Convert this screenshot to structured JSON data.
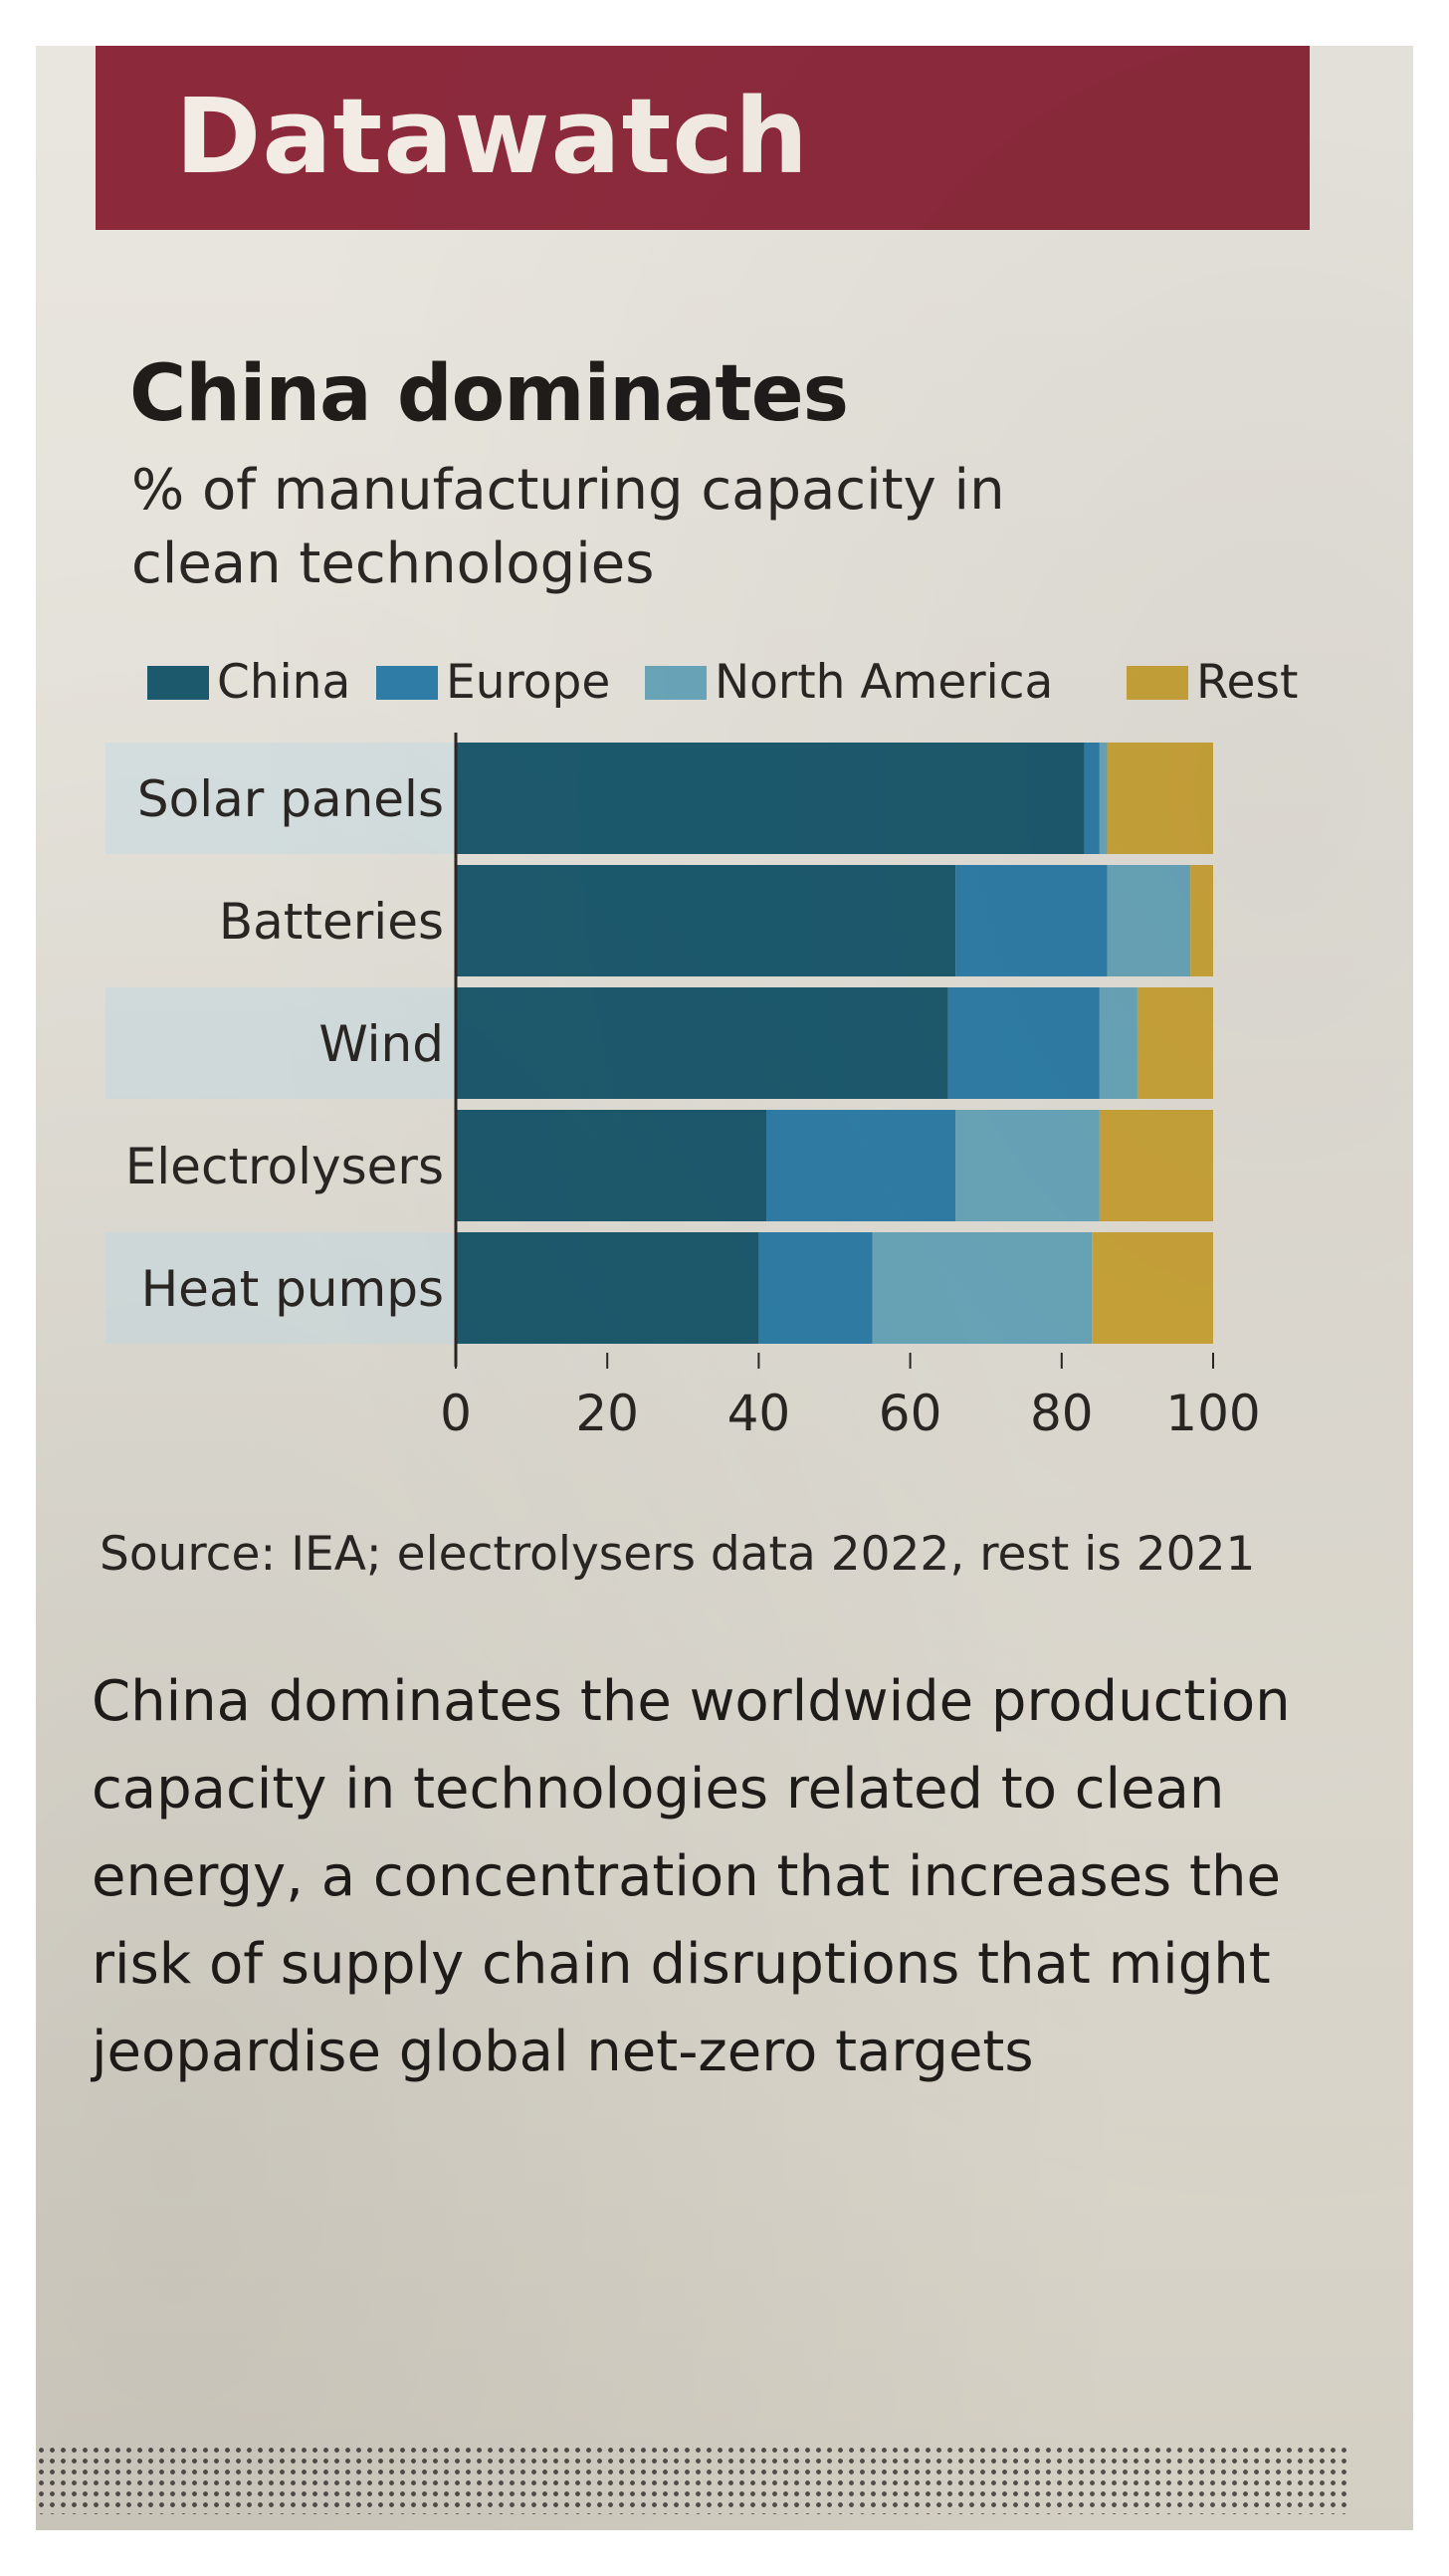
{
  "masthead": "Datawatch",
  "source": "Source: IEA; electrolysers data 2022, rest is 2021",
  "body_text": "China dominates the worldwide production capacity in technologies related to clean energy, a concentration that increases the risk of supply chain disruptions that might jeopardise global net-zero targets",
  "chart_data": {
    "type": "bar",
    "orientation": "horizontal",
    "stacked": true,
    "title": "China dominates",
    "subtitle": "% of manufacturing capacity in clean technologies",
    "categories": [
      "Solar panels",
      "Batteries",
      "Wind",
      "Electrolysers",
      "Heat pumps"
    ],
    "series": [
      {
        "name": "China",
        "color": "#1d5a6e",
        "values": [
          83,
          66,
          65,
          41,
          40
        ]
      },
      {
        "name": "Europe",
        "color": "#2f7ea8",
        "values": [
          2,
          20,
          20,
          25,
          15
        ]
      },
      {
        "name": "North America",
        "color": "#6aa6ba",
        "values": [
          1,
          11,
          5,
          19,
          29
        ]
      },
      {
        "name": "Rest",
        "color": "#caa43a",
        "values": [
          14,
          3,
          10,
          15,
          16
        ]
      }
    ],
    "xlim": [
      0,
      100
    ],
    "xticks": [
      "0",
      "20",
      "40",
      "60",
      "80",
      "100"
    ],
    "legend_position": "top-left",
    "grid": false
  }
}
